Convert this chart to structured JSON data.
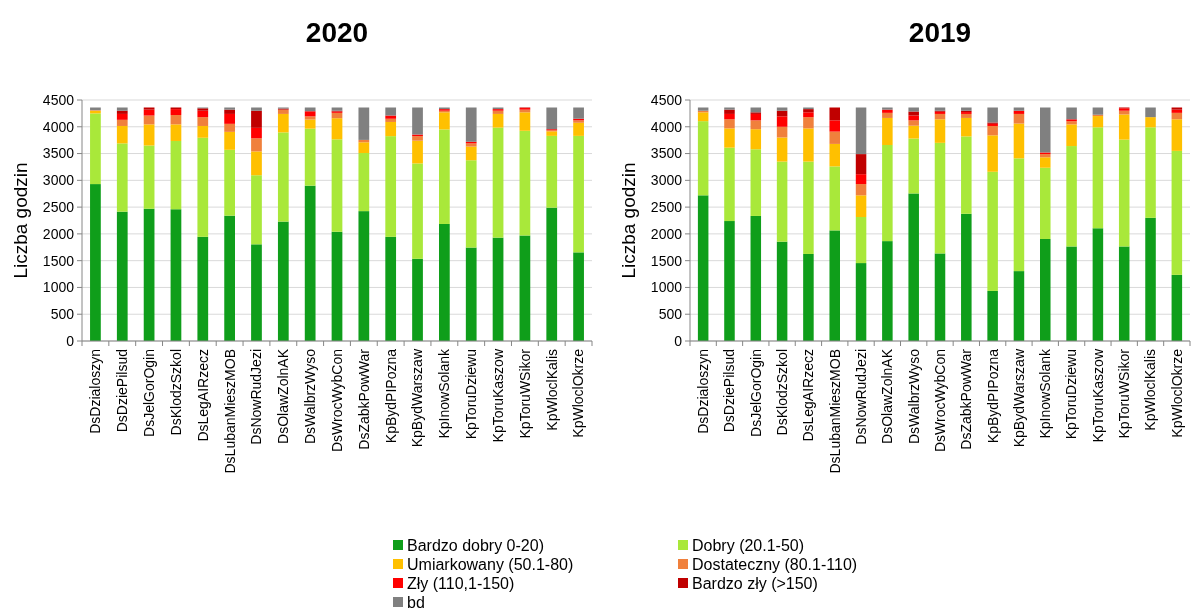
{
  "chart_data": [
    {
      "type": "bar",
      "title": "2020",
      "ylabel": "Liczba godzin",
      "stacked": true,
      "ylim": [
        0,
        4500
      ],
      "yticks": [
        0,
        500,
        1000,
        1500,
        2000,
        2500,
        3000,
        3500,
        4000,
        4500
      ],
      "grid": "y",
      "legend": "bottom",
      "categories": [
        "DsDzialoszyn",
        "DsDziePilsud",
        "DsJelGorOgin",
        "DsKlodzSzkol",
        "DsLegAIRzecz",
        "DsLubanMieszMOB",
        "DsNowRudJezi",
        "DsOlawZolnAK",
        "DsWalbrzWyso",
        "DsWrocWybCon",
        "DsZabkPowWar",
        "KpBydPIPozna",
        "KpBydWarszaw",
        "KpInowSolank",
        "KpToruDziewu",
        "KpToruKaszow",
        "KpToruWSikor",
        "KpWloclKalis",
        "KpWloclOkrze"
      ],
      "series": [
        {
          "name": "Bardzo dobry 0-20)",
          "color": "#0f9e1a",
          "values": [
            2930,
            2415,
            2470,
            2460,
            1945,
            2340,
            1805,
            2230,
            2900,
            2040,
            2425,
            1945,
            1535,
            2185,
            1745,
            1930,
            1970,
            2490,
            1655
          ]
        },
        {
          "name": "Dobry (20.1-50)",
          "color": "#a9e83a",
          "values": [
            1320,
            1275,
            1180,
            1275,
            1850,
            1230,
            1290,
            1665,
            1065,
            1725,
            1085,
            1880,
            1780,
            1765,
            1630,
            2055,
            1955,
            1340,
            2175
          ]
        },
        {
          "name": "Umiarkowany (50.1-80)",
          "color": "#ffc000",
          "values": [
            50,
            325,
            395,
            310,
            220,
            335,
            445,
            345,
            170,
            395,
            200,
            265,
            425,
            320,
            255,
            255,
            345,
            85,
            245
          ]
        },
        {
          "name": "Dostateczny (80.1-110)",
          "color": "#f0803c",
          "values": [
            10,
            115,
            165,
            175,
            165,
            150,
            245,
            80,
            60,
            100,
            45,
            60,
            85,
            30,
            60,
            60,
            50,
            20,
            45
          ]
        },
        {
          "name": "Zły (110,1-150)",
          "color": "#ff0000",
          "values": [
            0,
            110,
            110,
            110,
            120,
            185,
            195,
            0,
            95,
            25,
            0,
            60,
            30,
            30,
            30,
            30,
            30,
            20,
            30
          ]
        },
        {
          "name": "Bardzo zły (>150)",
          "color": "#c00000",
          "values": [
            0,
            60,
            40,
            30,
            45,
            80,
            320,
            20,
            0,
            15,
            0,
            0,
            0,
            0,
            0,
            0,
            10,
            0,
            0
          ]
        },
        {
          "name": "bd",
          "color": "#808080",
          "values": [
            50,
            60,
            0,
            0,
            15,
            40,
            60,
            20,
            70,
            60,
            605,
            150,
            505,
            30,
            640,
            30,
            0,
            405,
            210
          ]
        }
      ]
    },
    {
      "type": "bar",
      "title": "2019",
      "ylabel": "Liczba godzin",
      "stacked": true,
      "ylim": [
        0,
        4500
      ],
      "yticks": [
        0,
        500,
        1000,
        1500,
        2000,
        2500,
        3000,
        3500,
        4000,
        4500
      ],
      "grid": "y",
      "categories": [
        "DsDzialoszyn",
        "DsDziePilsud",
        "DsJelGorOgin",
        "DsKlodzSzkol",
        "DsLegAIRzecz",
        "DsLubanMieszMOB",
        "DsNowRudJezi",
        "DsOlawZolnAK",
        "DsWalbrzWyso",
        "DsWrocWybCon",
        "DsZabkPowWar",
        "KpBydPIPozna",
        "KpBydWarszaw",
        "KpInowSolank",
        "KpToruDziewu",
        "KpToruKaszow",
        "KpToruWSikor",
        "KpWloclKalis",
        "KpWloclOkrze"
      ],
      "series": [
        {
          "color": "#0f9e1a",
          "values": [
            2720,
            2240,
            2335,
            1855,
            1625,
            2065,
            1455,
            1865,
            2755,
            1635,
            2375,
            935,
            1305,
            1905,
            1765,
            2105,
            1765,
            2300,
            1235
          ]
        },
        {
          "color": "#a9e83a",
          "values": [
            1385,
            1370,
            1245,
            1495,
            1725,
            1195,
            860,
            1795,
            1025,
            2065,
            1445,
            2225,
            2105,
            1330,
            1875,
            1885,
            1995,
            1690,
            2315
          ]
        },
        {
          "color": "#ffc000",
          "values": [
            165,
            360,
            375,
            450,
            620,
            420,
            405,
            505,
            240,
            440,
            345,
            680,
            650,
            195,
            405,
            210,
            470,
            190,
            590
          ]
        },
        {
          "color": "#f0803c",
          "values": [
            30,
            170,
            165,
            200,
            210,
            230,
            210,
            95,
            100,
            100,
            75,
            175,
            180,
            60,
            60,
            25,
            70,
            0,
            120
          ]
        },
        {
          "color": "#ff0000",
          "values": [
            0,
            100,
            120,
            195,
            90,
            210,
            185,
            60,
            90,
            40,
            35,
            40,
            60,
            30,
            35,
            0,
            45,
            0,
            60
          ]
        },
        {
          "color": "#c00000",
          "values": [
            0,
            80,
            30,
            105,
            60,
            240,
            375,
            0,
            75,
            20,
            25,
            25,
            0,
            0,
            0,
            0,
            15,
            0,
            40
          ]
        },
        {
          "color": "#808080",
          "values": [
            60,
            40,
            90,
            60,
            30,
            0,
            870,
            40,
            75,
            60,
            60,
            280,
            60,
            840,
            220,
            135,
            0,
            180,
            0
          ]
        }
      ]
    }
  ]
}
